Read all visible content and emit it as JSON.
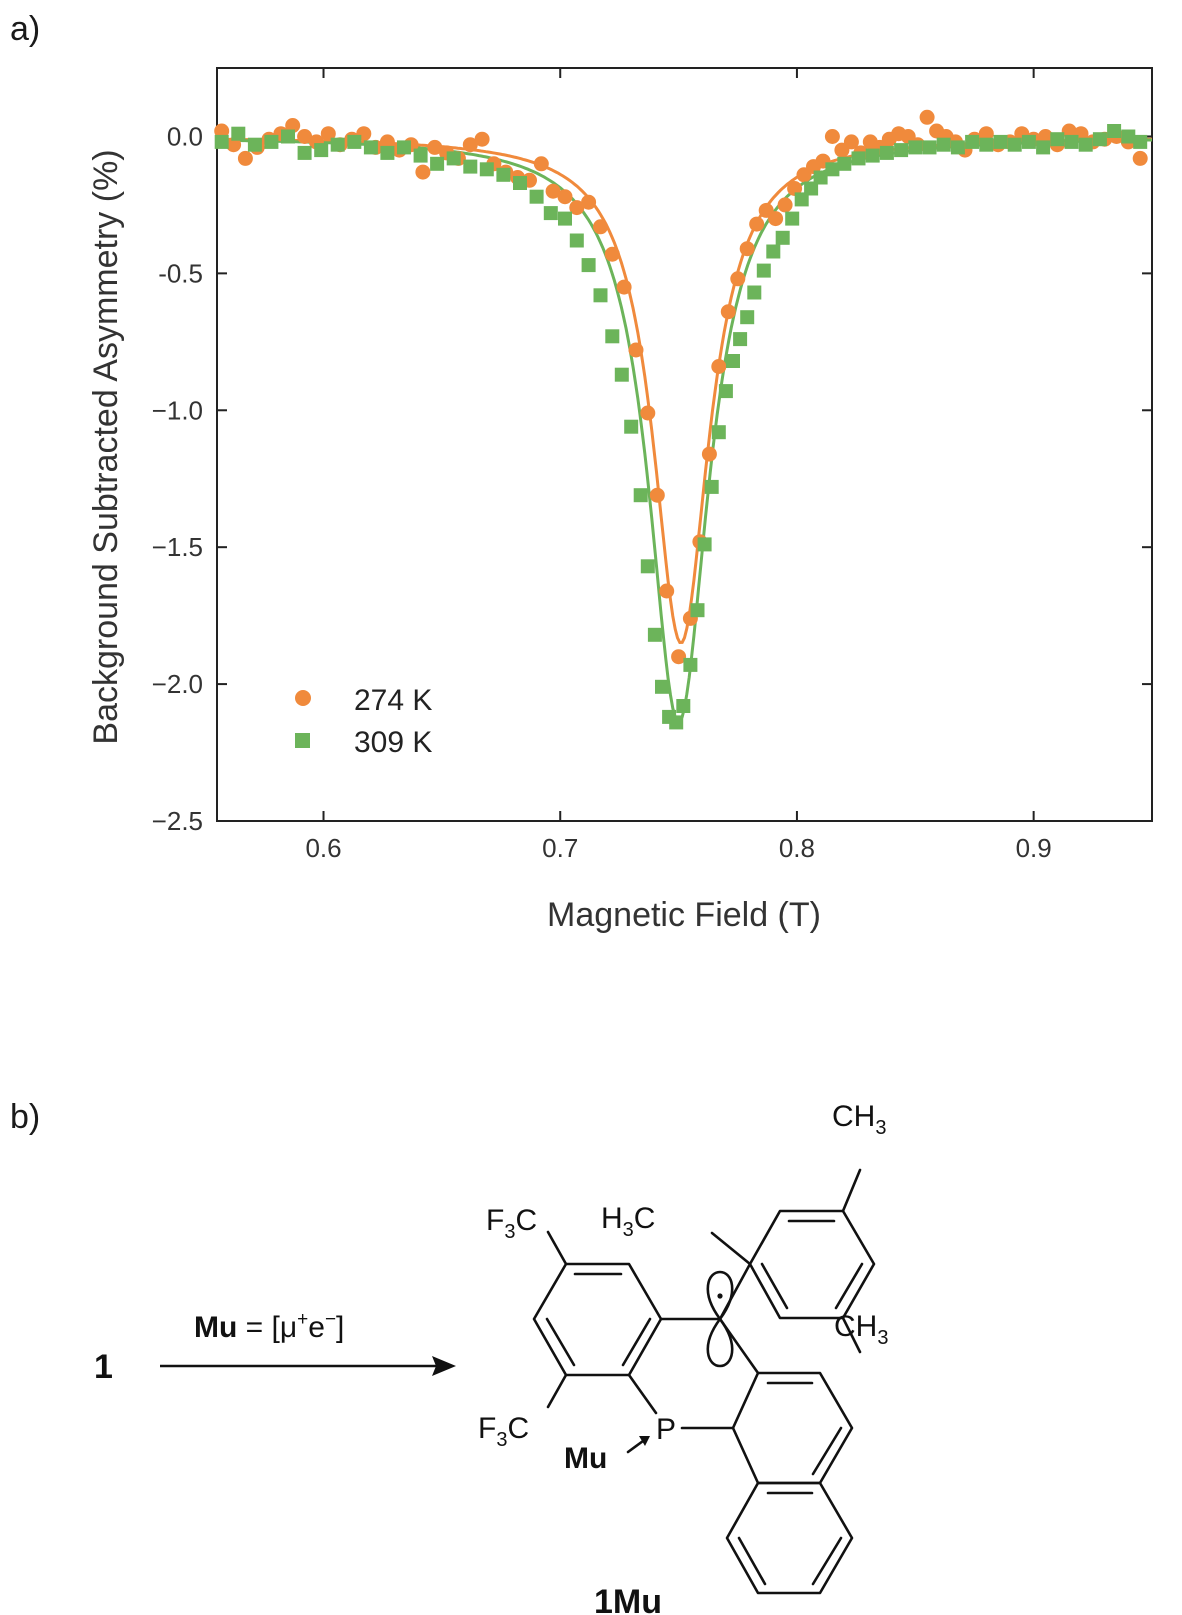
{
  "panel_a": {
    "label": "a)"
  },
  "panel_b": {
    "label": "b)",
    "reactant": "1",
    "arrow_label_bold": "Mu",
    "arrow_label_eq": " = [μ",
    "arrow_label_plus": "+",
    "arrow_label_e": "e",
    "arrow_label_minus": "−",
    "arrow_label_close": "]",
    "product": "1Mu",
    "groups": {
      "f3c_top": "F",
      "f3c_bottom": "F",
      "f3c_sub": "3",
      "f3c_c": "C",
      "h3c_h": "H",
      "h3c_sub": "3",
      "h3c_c": "C",
      "ch3": "CH",
      "ch3_sub": "3",
      "phosphorus": "P",
      "mu_label": "Mu"
    }
  },
  "colors": {
    "series_274": "#f08a3c",
    "series_309": "#6cb45a",
    "axis": "#222222"
  },
  "chart_data": {
    "type": "scatter",
    "title": "",
    "xlabel": "Magnetic Field (T)",
    "ylabel": "Background Subtracted Asymmetry (%)",
    "xlim": [
      0.555,
      0.95
    ],
    "ylim": [
      -2.5,
      0.25
    ],
    "xticks": [
      0.6,
      0.7,
      0.8,
      0.9
    ],
    "xtick_labels": [
      "0.6",
      "0.7",
      "0.8",
      "0.9"
    ],
    "yticks": [
      0.0,
      -0.5,
      -1.0,
      -1.5,
      -2.0,
      -2.5
    ],
    "ytick_labels": [
      "0.0",
      "-0.5",
      "−1.0",
      "−1.5",
      "−2.0",
      "−2.5"
    ],
    "legend_position": "bottom-left",
    "series": [
      {
        "name": "274 K",
        "marker": "circle",
        "x": [
          0.557,
          0.562,
          0.567,
          0.572,
          0.577,
          0.582,
          0.587,
          0.592,
          0.597,
          0.602,
          0.607,
          0.612,
          0.617,
          0.622,
          0.627,
          0.632,
          0.637,
          0.642,
          0.647,
          0.652,
          0.657,
          0.662,
          0.667,
          0.672,
          0.677,
          0.682,
          0.687,
          0.692,
          0.697,
          0.702,
          0.707,
          0.712,
          0.717,
          0.722,
          0.727,
          0.732,
          0.737,
          0.741,
          0.745,
          0.75,
          0.755,
          0.759,
          0.763,
          0.767,
          0.771,
          0.775,
          0.779,
          0.783,
          0.787,
          0.791,
          0.795,
          0.799,
          0.803,
          0.807,
          0.811,
          0.815,
          0.819,
          0.823,
          0.827,
          0.831,
          0.835,
          0.839,
          0.843,
          0.847,
          0.851,
          0.855,
          0.859,
          0.863,
          0.867,
          0.871,
          0.875,
          0.88,
          0.885,
          0.89,
          0.895,
          0.9,
          0.905,
          0.91,
          0.915,
          0.92,
          0.925,
          0.93,
          0.935,
          0.94,
          0.945
        ],
        "y": [
          0.02,
          -0.03,
          -0.08,
          -0.04,
          -0.01,
          0.01,
          0.04,
          0.0,
          -0.02,
          0.01,
          -0.03,
          -0.01,
          0.01,
          -0.04,
          -0.02,
          -0.05,
          -0.03,
          -0.13,
          -0.04,
          -0.06,
          -0.08,
          -0.03,
          -0.01,
          -0.1,
          -0.13,
          -0.15,
          -0.16,
          -0.1,
          -0.2,
          -0.22,
          -0.26,
          -0.24,
          -0.33,
          -0.43,
          -0.55,
          -0.78,
          -1.01,
          -1.31,
          -1.66,
          -1.9,
          -1.76,
          -1.48,
          -1.16,
          -0.84,
          -0.64,
          -0.52,
          -0.41,
          -0.32,
          -0.27,
          -0.3,
          -0.25,
          -0.19,
          -0.14,
          -0.11,
          -0.09,
          0.0,
          -0.05,
          -0.02,
          -0.06,
          -0.02,
          -0.04,
          -0.01,
          0.01,
          0.0,
          -0.03,
          0.07,
          0.02,
          0.0,
          -0.02,
          -0.05,
          -0.01,
          0.01,
          -0.03,
          -0.02,
          0.01,
          -0.01,
          0.0,
          -0.03,
          0.02,
          0.01,
          -0.02,
          -0.01,
          0.0,
          -0.02,
          -0.08
        ]
      },
      {
        "name": "309 K",
        "marker": "square",
        "x": [
          0.557,
          0.564,
          0.571,
          0.578,
          0.585,
          0.592,
          0.599,
          0.606,
          0.613,
          0.62,
          0.627,
          0.634,
          0.641,
          0.648,
          0.655,
          0.662,
          0.669,
          0.676,
          0.683,
          0.69,
          0.696,
          0.702,
          0.707,
          0.712,
          0.717,
          0.722,
          0.726,
          0.73,
          0.734,
          0.737,
          0.74,
          0.743,
          0.746,
          0.749,
          0.752,
          0.755,
          0.758,
          0.761,
          0.764,
          0.767,
          0.77,
          0.773,
          0.776,
          0.779,
          0.782,
          0.786,
          0.79,
          0.794,
          0.798,
          0.802,
          0.806,
          0.81,
          0.815,
          0.82,
          0.826,
          0.832,
          0.838,
          0.844,
          0.85,
          0.856,
          0.862,
          0.868,
          0.874,
          0.88,
          0.886,
          0.892,
          0.898,
          0.904,
          0.91,
          0.916,
          0.922,
          0.928,
          0.934,
          0.94,
          0.945
        ],
        "y": [
          -0.02,
          0.01,
          -0.03,
          -0.02,
          0.0,
          -0.06,
          -0.05,
          -0.03,
          -0.02,
          -0.04,
          -0.06,
          -0.04,
          -0.07,
          -0.1,
          -0.08,
          -0.11,
          -0.12,
          -0.14,
          -0.17,
          -0.22,
          -0.28,
          -0.3,
          -0.38,
          -0.47,
          -0.58,
          -0.73,
          -0.87,
          -1.06,
          -1.31,
          -1.57,
          -1.82,
          -2.01,
          -2.12,
          -2.14,
          -2.08,
          -1.93,
          -1.73,
          -1.49,
          -1.28,
          -1.08,
          -0.93,
          -0.82,
          -0.74,
          -0.66,
          -0.57,
          -0.49,
          -0.42,
          -0.37,
          -0.3,
          -0.23,
          -0.19,
          -0.15,
          -0.12,
          -0.1,
          -0.08,
          -0.07,
          -0.06,
          -0.05,
          -0.04,
          -0.04,
          -0.03,
          -0.04,
          -0.02,
          -0.03,
          -0.02,
          -0.03,
          -0.02,
          -0.04,
          -0.01,
          -0.02,
          -0.03,
          -0.01,
          0.02,
          0.0,
          -0.02
        ]
      }
    ],
    "fits": [
      {
        "name": "274 K",
        "center": 0.751,
        "depth": 1.85,
        "hwhm": 0.0145,
        "baseline": 0.0
      },
      {
        "name": "309 K",
        "center": 0.75,
        "depth": 2.14,
        "hwhm": 0.0155,
        "baseline": 0.0
      }
    ]
  }
}
